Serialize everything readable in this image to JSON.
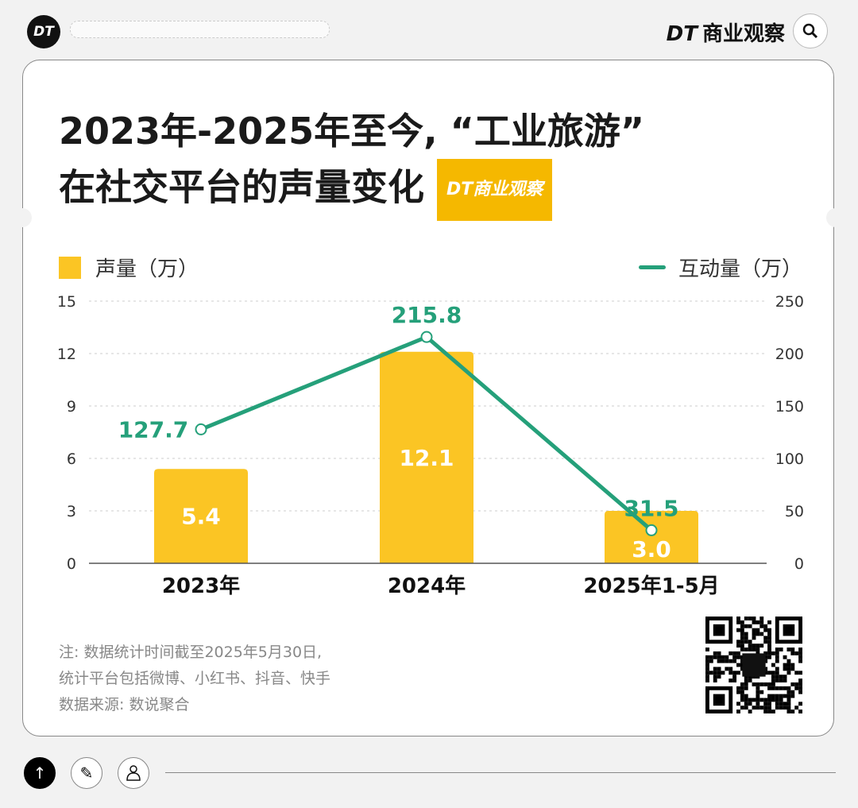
{
  "topbar": {
    "logo": "DT",
    "brand_mark": "DT",
    "brand_name": "商业观察"
  },
  "title": {
    "line1": "2023年-2025年至今, “工业旅游”",
    "line2": "在社交平台的声量变化",
    "badge": "DT商业观察"
  },
  "chart_data": {
    "type": "bar+line",
    "categories": [
      "2023年",
      "2024年",
      "2025年1-5月"
    ],
    "series": [
      {
        "name": "声量（万）",
        "type": "bar",
        "axis": "left",
        "values": [
          5.4,
          12.1,
          3.0
        ],
        "labels": [
          "5.4",
          "12.1",
          "3.0"
        ],
        "color": "#fbc524"
      },
      {
        "name": "互动量（万）",
        "type": "line",
        "axis": "right",
        "values": [
          127.7,
          215.8,
          31.5
        ],
        "labels": [
          "127.7",
          "215.8",
          "31.5"
        ],
        "color": "#25a07a"
      }
    ],
    "left_axis": {
      "ylim": [
        0,
        15
      ],
      "ticks": [
        "0",
        "3",
        "6",
        "9",
        "12",
        "15"
      ]
    },
    "right_axis": {
      "ylim": [
        0,
        250
      ],
      "ticks": [
        "0",
        "50",
        "100",
        "150",
        "200",
        "250"
      ]
    },
    "grid": true,
    "legend_placement": "top"
  },
  "notes": {
    "line1": "注: 数据统计时间截至2025年5月30日,",
    "line2": "统计平台包括微博、小红书、抖音、快手",
    "source": "数据来源: 数说聚合"
  },
  "bottom": {
    "up": "↑",
    "edit": "✎"
  }
}
